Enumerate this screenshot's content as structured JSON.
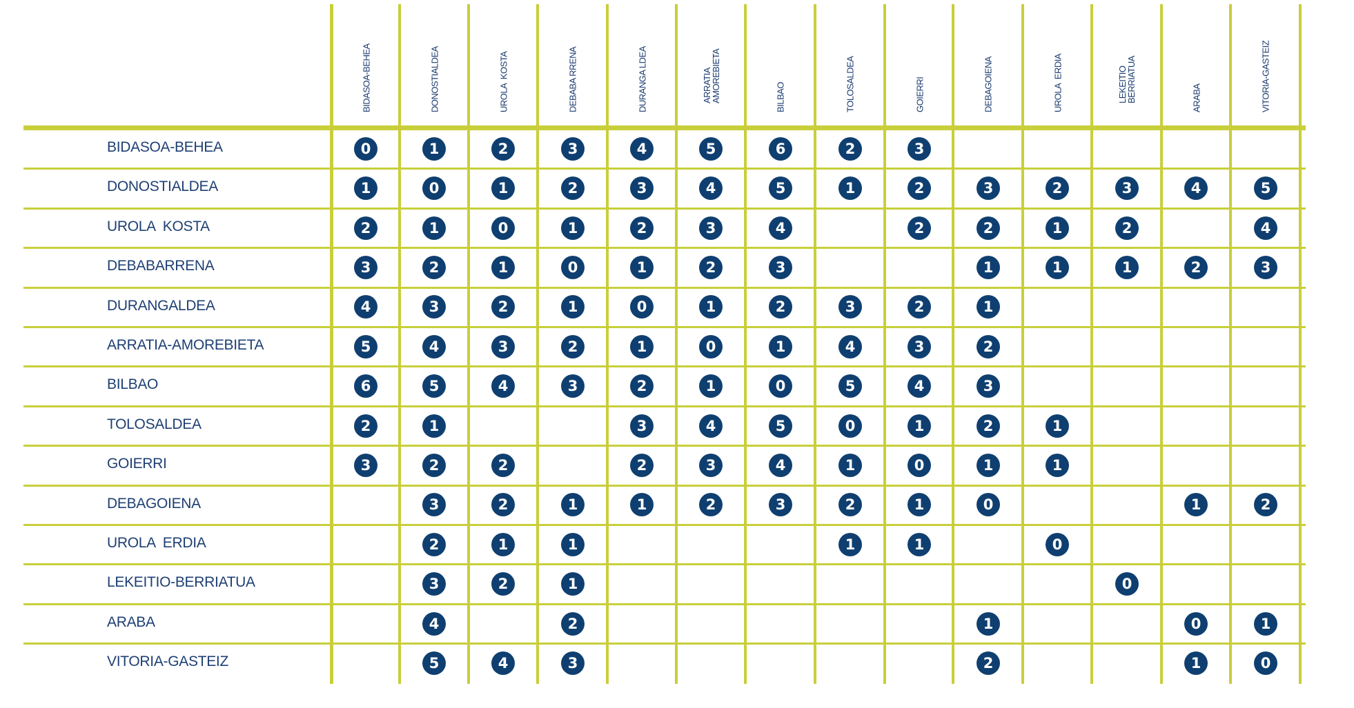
{
  "columns": [
    "BIDASOA-BEHEA",
    "DONOSTIALDEA",
    "UROLA  KOSTA",
    "DEBABA RRENA",
    "DURANGA LDEA",
    "ARRATIA\nAMOREBIETA",
    "BILBAO",
    "TOLOSALDEA",
    "GOIERRI",
    "DEBAGOIENA",
    "UROLA  ERDIA",
    "LEKEITIO\nBERRIATUA",
    "ARABA",
    "VITORIA-GASTEIZ"
  ],
  "rows": [
    {
      "label": "BIDASOA-BEHEA",
      "values": [
        "0",
        "1",
        "2",
        "3",
        "4",
        "5",
        "6",
        "2",
        "3",
        "",
        "",
        "",
        "",
        ""
      ]
    },
    {
      "label": "DONOSTIALDEA",
      "values": [
        "1",
        "0",
        "1",
        "2",
        "3",
        "4",
        "5",
        "1",
        "2",
        "3",
        "2",
        "3",
        "4",
        "5"
      ]
    },
    {
      "label": "UROLA  KOSTA",
      "values": [
        "2",
        "1",
        "0",
        "1",
        "2",
        "3",
        "4",
        "",
        "2",
        "2",
        "1",
        "2",
        "",
        "4"
      ]
    },
    {
      "label": "DEBABARRENA",
      "values": [
        "3",
        "2",
        "1",
        "0",
        "1",
        "2",
        "3",
        "",
        "",
        "1",
        "1",
        "1",
        "2",
        "3"
      ]
    },
    {
      "label": "DURANGALDEA",
      "values": [
        "4",
        "3",
        "2",
        "1",
        "0",
        "1",
        "2",
        "3",
        "2",
        "1",
        "",
        "",
        "",
        ""
      ]
    },
    {
      "label": "ARRATIA-AMOREBIETA",
      "values": [
        "5",
        "4",
        "3",
        "2",
        "1",
        "0",
        "1",
        "4",
        "3",
        "2",
        "",
        "",
        "",
        ""
      ]
    },
    {
      "label": "BILBAO",
      "values": [
        "6",
        "5",
        "4",
        "3",
        "2",
        "1",
        "0",
        "5",
        "4",
        "3",
        "",
        "",
        "",
        ""
      ]
    },
    {
      "label": "TOLOSALDEA",
      "values": [
        "2",
        "1",
        "",
        "",
        "3",
        "4",
        "5",
        "0",
        "1",
        "2",
        "1",
        "",
        "",
        ""
      ]
    },
    {
      "label": "GOIERRI",
      "values": [
        "3",
        "2",
        "2",
        "",
        "2",
        "3",
        "4",
        "1",
        "0",
        "1",
        "1",
        "",
        "",
        ""
      ]
    },
    {
      "label": "DEBAGOIENA",
      "values": [
        "",
        "3",
        "2",
        "1",
        "1",
        "2",
        "3",
        "2",
        "1",
        "0",
        "",
        "",
        "1",
        "2"
      ]
    },
    {
      "label": "UROLA  ERDIA",
      "values": [
        "",
        "2",
        "1",
        "1",
        "",
        "",
        "",
        "1",
        "1",
        "",
        "0",
        "",
        "",
        ""
      ]
    },
    {
      "label": "LEKEITIO-BERRIATUA",
      "values": [
        "",
        "3",
        "2",
        "1",
        "",
        "",
        "",
        "",
        "",
        "",
        "",
        "0",
        "",
        ""
      ]
    },
    {
      "label": "ARABA",
      "values": [
        "",
        "4",
        "",
        "2",
        "",
        "",
        "",
        "",
        "",
        "1",
        "",
        "",
        "0",
        "1"
      ]
    },
    {
      "label": "VITORIA-GASTEIZ",
      "values": [
        "",
        "5",
        "4",
        "3",
        "",
        "",
        "",
        "",
        "",
        "2",
        "",
        "",
        "1",
        "0"
      ]
    }
  ],
  "colors": {
    "grid_line": "#c8cf3a",
    "badge": "#0f3f70",
    "label_text": "#1e3f73"
  }
}
